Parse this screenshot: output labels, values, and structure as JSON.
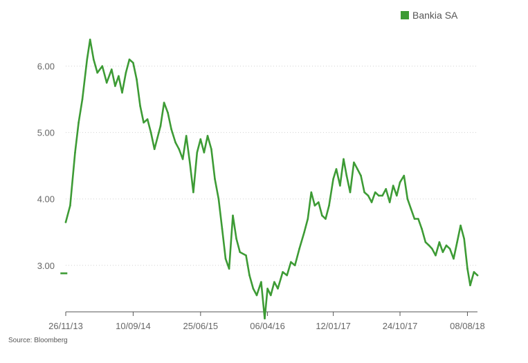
{
  "chart_data": {
    "type": "line",
    "legend": {
      "label": "Bankia SA",
      "position": "top-right"
    },
    "source": "Source: Bloomberg",
    "colors": {
      "series": "#3d9b35",
      "grid": "#d0d0d0",
      "axis": "#555555",
      "text": "#666666"
    },
    "grid": true,
    "ylim": [
      2.3,
      6.6
    ],
    "xlim": [
      "2013-11-26",
      "2018-09-20"
    ],
    "y_ticks": [
      {
        "value": 3.0,
        "label": "3.00"
      },
      {
        "value": 4.0,
        "label": "4.00"
      },
      {
        "value": 5.0,
        "label": "5.00"
      },
      {
        "value": 6.0,
        "label": "6.00"
      }
    ],
    "x_ticks": [
      {
        "value": "2013-11-26",
        "label": "26/11/13"
      },
      {
        "value": "2014-09-10",
        "label": "10/09/14"
      },
      {
        "value": "2015-06-25",
        "label": "25/06/15"
      },
      {
        "value": "2016-04-06",
        "label": "06/04/16"
      },
      {
        "value": "2017-01-12",
        "label": "12/01/17"
      },
      {
        "value": "2017-10-24",
        "label": "24/10/17"
      },
      {
        "value": "2018-08-08",
        "label": "08/08/18"
      }
    ],
    "series": [
      {
        "name": "Bankia SA",
        "x": [
          "2013-11-26",
          "2013-12-15",
          "2014-01-05",
          "2014-01-20",
          "2014-02-05",
          "2014-02-25",
          "2014-03-10",
          "2014-03-25",
          "2014-04-10",
          "2014-05-01",
          "2014-05-20",
          "2014-06-10",
          "2014-06-25",
          "2014-07-10",
          "2014-07-25",
          "2014-08-10",
          "2014-08-25",
          "2014-09-10",
          "2014-09-25",
          "2014-10-10",
          "2014-10-25",
          "2014-11-10",
          "2014-11-25",
          "2014-12-10",
          "2015-01-05",
          "2015-01-20",
          "2015-02-05",
          "2015-02-20",
          "2015-03-10",
          "2015-03-25",
          "2015-04-10",
          "2015-04-25",
          "2015-05-10",
          "2015-05-25",
          "2015-06-10",
          "2015-06-25",
          "2015-07-10",
          "2015-07-25",
          "2015-08-10",
          "2015-08-25",
          "2015-09-10",
          "2015-09-25",
          "2015-10-10",
          "2015-10-25",
          "2015-11-10",
          "2015-11-25",
          "2015-12-10",
          "2016-01-05",
          "2016-01-20",
          "2016-02-05",
          "2016-02-20",
          "2016-03-10",
          "2016-03-25",
          "2016-04-06",
          "2016-04-20",
          "2016-05-05",
          "2016-05-20",
          "2016-06-10",
          "2016-06-28",
          "2016-07-15",
          "2016-08-01",
          "2016-08-20",
          "2016-09-10",
          "2016-09-25",
          "2016-10-10",
          "2016-10-25",
          "2016-11-10",
          "2016-11-25",
          "2016-12-10",
          "2016-12-25",
          "2017-01-12",
          "2017-01-25",
          "2017-02-10",
          "2017-02-25",
          "2017-03-10",
          "2017-03-25",
          "2017-04-10",
          "2017-04-25",
          "2017-05-10",
          "2017-05-25",
          "2017-06-10",
          "2017-06-25",
          "2017-07-10",
          "2017-07-25",
          "2017-08-10",
          "2017-08-25",
          "2017-09-10",
          "2017-09-25",
          "2017-10-10",
          "2017-10-24",
          "2017-11-10",
          "2017-11-25",
          "2017-12-10",
          "2017-12-25",
          "2018-01-10",
          "2018-01-25",
          "2018-02-10",
          "2018-02-25",
          "2018-03-10",
          "2018-03-25",
          "2018-04-10",
          "2018-04-25",
          "2018-05-10",
          "2018-05-25",
          "2018-06-10",
          "2018-06-25",
          "2018-07-10",
          "2018-07-25",
          "2018-08-08",
          "2018-08-20",
          "2018-09-05",
          "2018-09-20"
        ],
        "values": [
          3.65,
          3.9,
          4.7,
          5.15,
          5.5,
          6.1,
          6.4,
          6.1,
          5.9,
          6.0,
          5.75,
          5.95,
          5.7,
          5.85,
          5.6,
          5.9,
          6.1,
          6.05,
          5.8,
          5.4,
          5.15,
          5.2,
          5.0,
          4.75,
          5.1,
          5.45,
          5.3,
          5.05,
          4.85,
          4.75,
          4.6,
          4.95,
          4.55,
          4.1,
          4.7,
          4.9,
          4.7,
          4.95,
          4.75,
          4.3,
          4.0,
          3.55,
          3.1,
          2.95,
          3.75,
          3.4,
          3.2,
          3.15,
          2.85,
          2.65,
          2.55,
          2.75,
          2.2,
          2.65,
          2.55,
          2.75,
          2.65,
          2.9,
          2.85,
          3.05,
          3.0,
          3.25,
          3.5,
          3.7,
          4.1,
          3.9,
          3.95,
          3.75,
          3.7,
          3.9,
          4.3,
          4.45,
          4.2,
          4.6,
          4.35,
          4.1,
          4.55,
          4.45,
          4.35,
          4.1,
          4.05,
          3.95,
          4.1,
          4.05,
          4.05,
          4.15,
          3.95,
          4.2,
          4.05,
          4.25,
          4.35,
          4.0,
          3.85,
          3.7,
          3.7,
          3.55,
          3.35,
          3.3,
          3.25,
          3.15,
          3.35,
          3.2,
          3.3,
          3.25,
          3.1,
          3.35,
          3.6,
          3.4,
          2.95,
          2.7,
          2.9,
          2.85
        ]
      }
    ],
    "extra_marks": [
      {
        "x": "2013-11-18",
        "y": 2.88
      }
    ]
  }
}
